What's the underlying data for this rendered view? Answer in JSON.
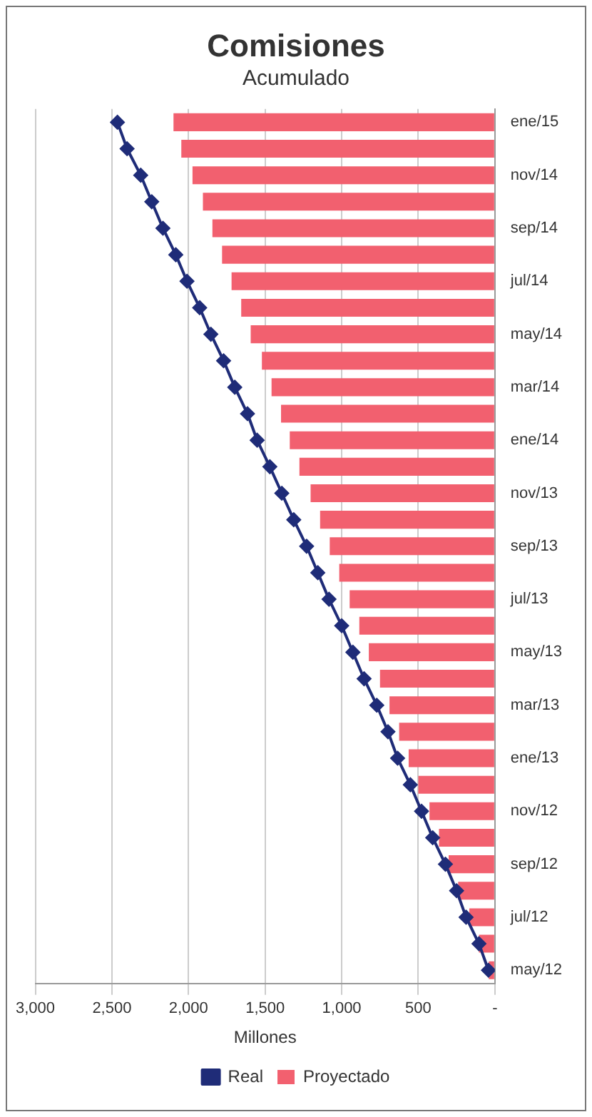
{
  "chart_data": {
    "type": "bar",
    "orientation": "horizontal",
    "title": "Comisiones",
    "subtitle": "Acumulado",
    "xlabel": "Millones",
    "categories": [
      "ene/15",
      null,
      "nov/14",
      null,
      "sep/14",
      null,
      "jul/14",
      null,
      "may/14",
      null,
      "mar/14",
      null,
      "ene/14",
      null,
      "nov/13",
      null,
      "sep/13",
      null,
      "jul/13",
      null,
      "may/13",
      null,
      "mar/13",
      null,
      "ene/13",
      null,
      "nov/12",
      null,
      "sep/12",
      null,
      "jul/12",
      null,
      "may/12"
    ],
    "series": [
      {
        "name": "Proyectado",
        "color": "#f2606f",
        "values": [
          2098,
          2047,
          1974,
          1906,
          1844,
          1781,
          1719,
          1656,
          1594,
          1521,
          1458,
          1396,
          1339,
          1276,
          1203,
          1141,
          1078,
          1016,
          948,
          885,
          823,
          750,
          688,
          625,
          563,
          500,
          427,
          365,
          302,
          240,
          167,
          104,
          40
        ]
      },
      {
        "name": "Real",
        "type": "line",
        "color": "#1f2c78",
        "marker": "diamond",
        "values": [
          2464,
          2401,
          2312,
          2240,
          2167,
          2083,
          2010,
          1927,
          1854,
          1771,
          1698,
          1615,
          1552,
          1469,
          1391,
          1313,
          1229,
          1156,
          1083,
          1000,
          927,
          854,
          771,
          698,
          635,
          552,
          479,
          406,
          323,
          250,
          188,
          104,
          42
        ]
      }
    ],
    "xlim": [
      3000,
      0
    ],
    "xticks": [
      {
        "value": 3000,
        "label": "3,000"
      },
      {
        "value": 2500,
        "label": "2,500"
      },
      {
        "value": 2000,
        "label": "2,000"
      },
      {
        "value": 1500,
        "label": "1,500"
      },
      {
        "value": 1000,
        "label": "1,000"
      },
      500,
      {
        "value": 0,
        "label": "-"
      }
    ],
    "grid": "x",
    "legend": "bottom"
  }
}
